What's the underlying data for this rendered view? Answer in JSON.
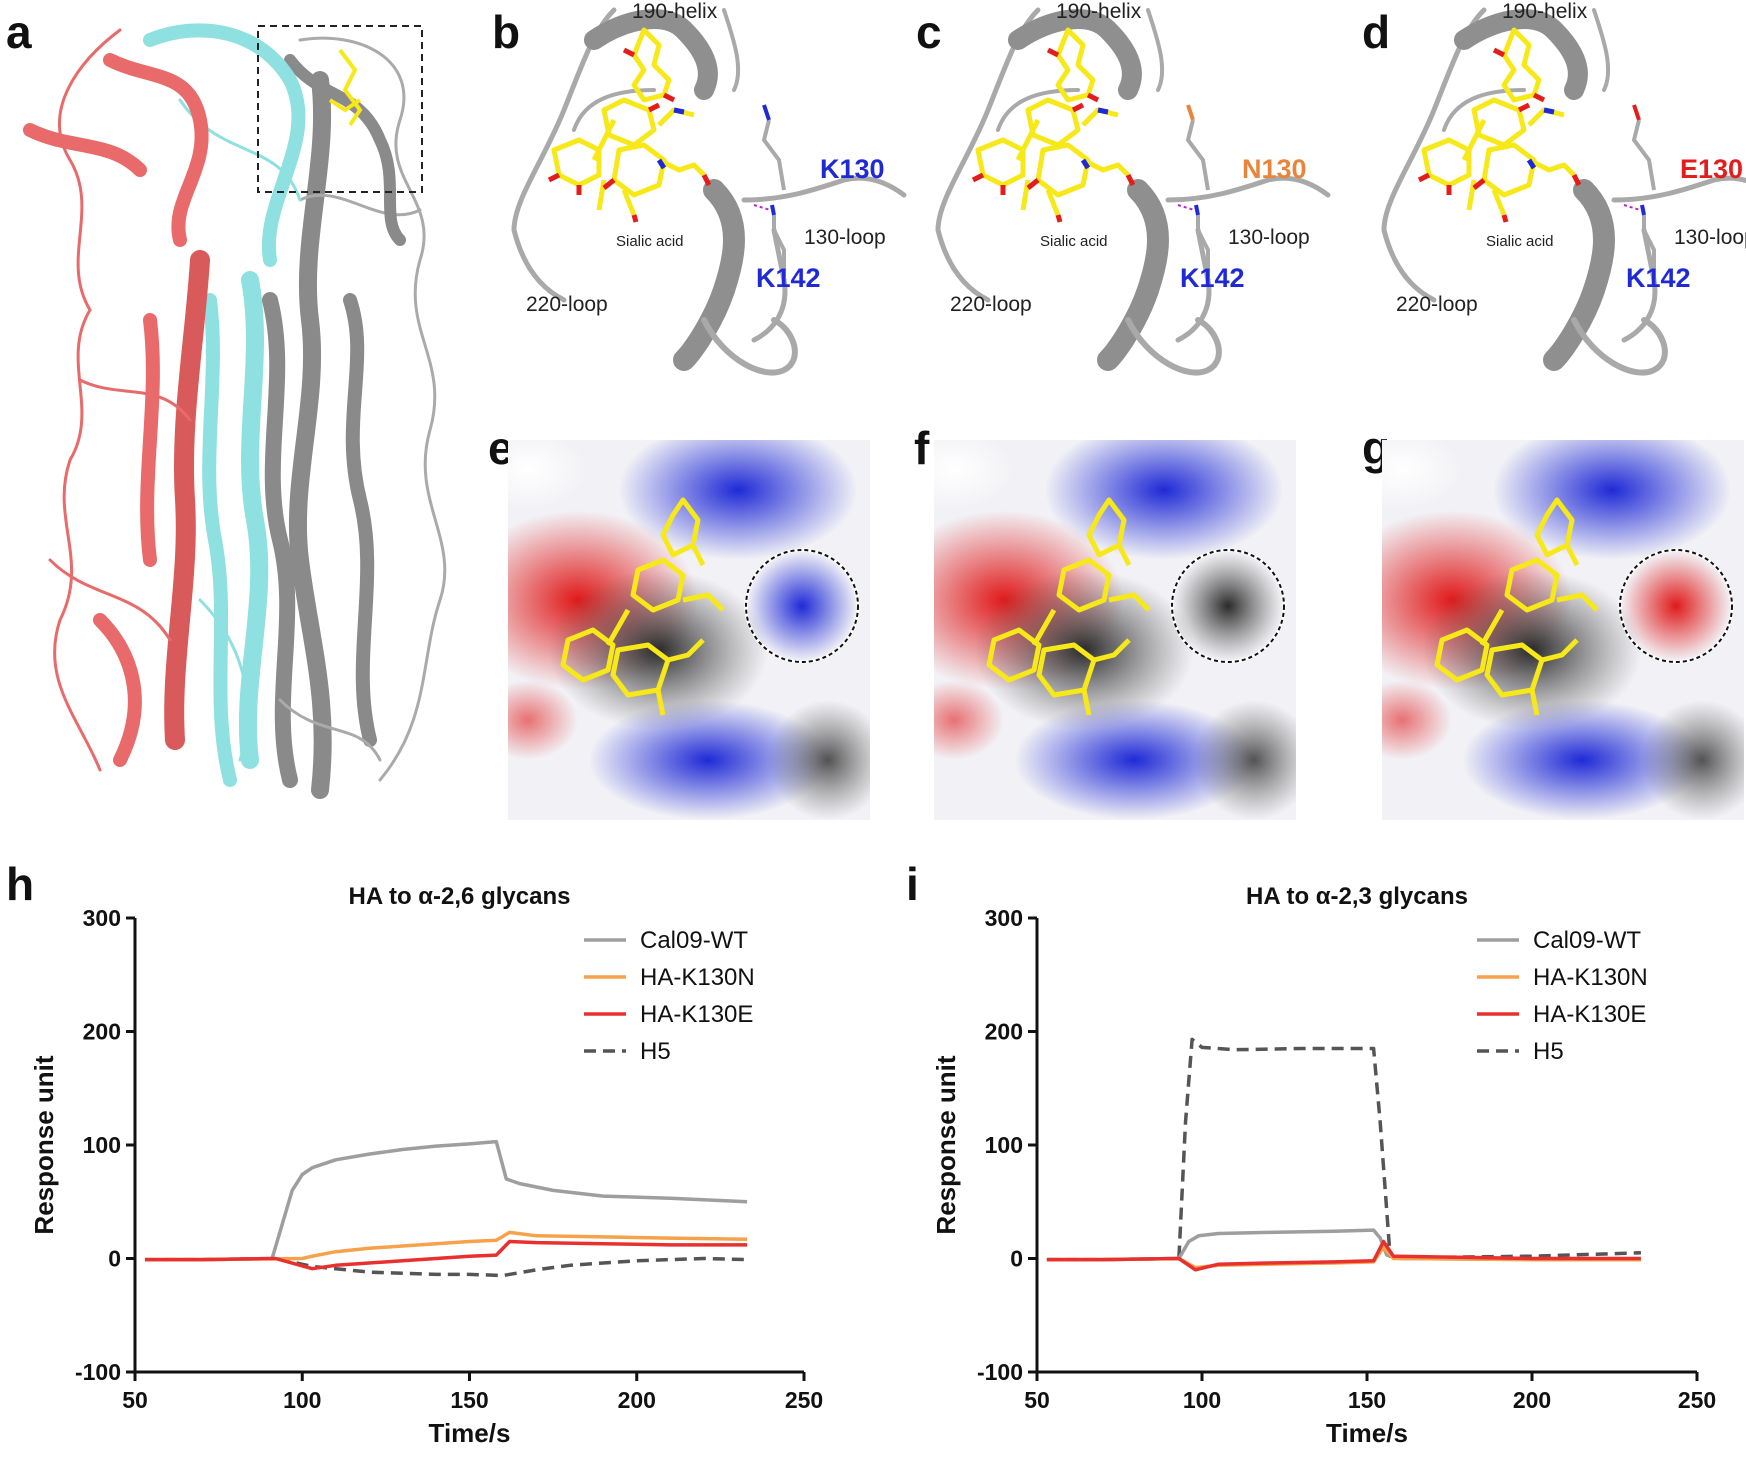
{
  "panel_letters": [
    "a",
    "b",
    "c",
    "d",
    "e",
    "f",
    "g",
    "h",
    "i"
  ],
  "structure_labels": {
    "helix": "190-helix",
    "loop130": "130-loop",
    "loop220": "220-loop",
    "sialic": "Sialic acid",
    "k142": "K142",
    "residue_b": "K130",
    "residue_c": "N130",
    "residue_d": "E130"
  },
  "colors": {
    "cal09_wt": "#9e9e9e",
    "k130n": "#f5a24b",
    "k130e": "#e8312f",
    "h5": "#555555",
    "lysine_blue": "#1f2ad6",
    "asparagine_orange": "#e8853a",
    "glutamate_red": "#e51c1c",
    "ligand_yellow": "#f7e81a",
    "chain_red": "#e86a6a",
    "chain_cyan": "#8fe0e0",
    "chain_gray": "#8a8a8a"
  },
  "chart_data": [
    {
      "type": "line",
      "title": "HA to α-2,6 glycans",
      "xlabel": "Time/s",
      "ylabel": "Response unit",
      "xlim": [
        50,
        250
      ],
      "ylim": [
        -100,
        300
      ],
      "xticks": [
        50,
        100,
        150,
        200,
        250
      ],
      "yticks": [
        -100,
        0,
        100,
        200,
        300
      ],
      "legend_position": "top-right",
      "series": [
        {
          "name": "Cal09-WT",
          "color": "#9e9e9e",
          "dash": false,
          "x": [
            53,
            70,
            91,
            97,
            100,
            103,
            110,
            120,
            130,
            140,
            150,
            158,
            161,
            165,
            175,
            190,
            210,
            233
          ],
          "y": [
            -1,
            -1,
            0,
            60,
            74,
            80,
            87,
            92,
            96,
            99,
            101,
            103,
            70,
            66,
            60,
            55,
            53,
            50
          ]
        },
        {
          "name": "HA-K130N",
          "color": "#f5a24b",
          "dash": false,
          "x": [
            53,
            70,
            100,
            103,
            110,
            120,
            130,
            140,
            150,
            158,
            162,
            170,
            190,
            210,
            233
          ],
          "y": [
            -1,
            -1,
            0,
            2,
            6,
            9,
            11,
            13,
            15,
            16,
            23,
            20,
            19,
            18,
            17
          ]
        },
        {
          "name": "HA-K130E",
          "color": "#e8312f",
          "dash": false,
          "x": [
            53,
            70,
            92,
            103,
            110,
            120,
            130,
            140,
            150,
            158,
            162,
            170,
            190,
            210,
            233
          ],
          "y": [
            -1,
            -1,
            0,
            -9,
            -6,
            -4,
            -2,
            0,
            2,
            3,
            15,
            14,
            13,
            12,
            12
          ]
        },
        {
          "name": "H5",
          "color": "#555555",
          "dash": true,
          "x": [
            53,
            70,
            92,
            103,
            110,
            120,
            130,
            140,
            150,
            160,
            170,
            180,
            190,
            200,
            210,
            220,
            233
          ],
          "y": [
            -1,
            -1,
            0,
            -7,
            -9,
            -12,
            -13,
            -14,
            -14,
            -15,
            -10,
            -6,
            -4,
            -2,
            -1,
            0,
            -1
          ]
        }
      ]
    },
    {
      "type": "line",
      "title": "HA to α-2,3 glycans",
      "xlabel": "Time/s",
      "ylabel": "Response unit",
      "xlim": [
        50,
        250
      ],
      "ylim": [
        -100,
        300
      ],
      "xticks": [
        50,
        100,
        150,
        200,
        250
      ],
      "yticks": [
        -100,
        0,
        100,
        200,
        300
      ],
      "legend_position": "top-right",
      "series": [
        {
          "name": "Cal09-WT",
          "color": "#9e9e9e",
          "dash": false,
          "x": [
            53,
            70,
            93,
            96,
            99,
            105,
            120,
            140,
            152,
            154,
            156,
            160,
            200,
            233
          ],
          "y": [
            -1,
            -1,
            0,
            15,
            20,
            22,
            23,
            24,
            25,
            18,
            3,
            0,
            -1,
            -1
          ]
        },
        {
          "name": "HA-K130N",
          "color": "#f5a24b",
          "dash": false,
          "x": [
            53,
            70,
            93,
            98,
            105,
            120,
            140,
            152,
            155,
            158,
            200,
            233
          ],
          "y": [
            -1,
            -1,
            0,
            -8,
            -6,
            -5,
            -4,
            -3,
            10,
            0,
            -1,
            -1
          ]
        },
        {
          "name": "HA-K130E",
          "color": "#e8312f",
          "dash": false,
          "x": [
            53,
            70,
            93,
            98,
            105,
            120,
            140,
            152,
            155,
            158,
            200,
            233
          ],
          "y": [
            -1,
            -1,
            0,
            -10,
            -5,
            -4,
            -3,
            -2,
            15,
            2,
            0,
            0
          ]
        },
        {
          "name": "H5",
          "color": "#555555",
          "dash": true,
          "x": [
            53,
            70,
            93,
            95,
            97,
            100,
            110,
            130,
            152,
            154,
            157,
            170,
            200,
            233
          ],
          "y": [
            -1,
            -1,
            0,
            120,
            193,
            186,
            184,
            185,
            185,
            120,
            2,
            1,
            2,
            5
          ]
        }
      ]
    }
  ]
}
